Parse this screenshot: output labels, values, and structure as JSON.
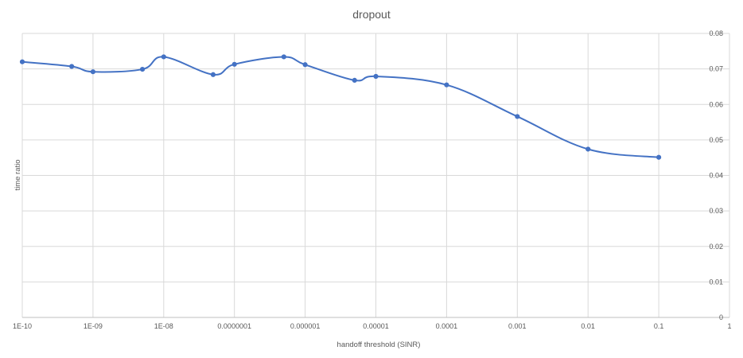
{
  "chart_data": {
    "type": "line",
    "title": "dropout",
    "xlabel": "handoff threshold  (SINR)",
    "ylabel": "time ratio",
    "x_scale": "log",
    "x_ticks": [
      "1E-10",
      "1E-09",
      "1E-08",
      "0.0000001",
      "0.000001",
      "0.00001",
      "0.0001",
      "0.001",
      "0.01",
      "0.1",
      "1"
    ],
    "x_tick_values": [
      1e-10,
      1e-09,
      1e-08,
      1e-07,
      1e-06,
      1e-05,
      0.0001,
      0.001,
      0.01,
      0.1,
      1
    ],
    "y_ticks": [
      "0",
      "0.01",
      "0.02",
      "0.03",
      "0.04",
      "0.05",
      "0.06",
      "0.07",
      "0.08"
    ],
    "ylim": [
      0,
      0.08
    ],
    "y_axis_side": "right",
    "grid": true,
    "series": [
      {
        "color": "#4472c4",
        "smooth": true,
        "x": [
          1e-10,
          5e-10,
          1e-09,
          5e-09,
          1e-08,
          5e-08,
          1e-07,
          5e-07,
          1e-06,
          5e-06,
          1e-05,
          0.0001,
          0.001,
          0.01,
          0.1
        ],
        "y": [
          0.072,
          0.0707,
          0.0692,
          0.0699,
          0.0734,
          0.0684,
          0.0713,
          0.0734,
          0.0712,
          0.0668,
          0.0679,
          0.0655,
          0.0566,
          0.0474,
          0.0451
        ]
      }
    ]
  }
}
